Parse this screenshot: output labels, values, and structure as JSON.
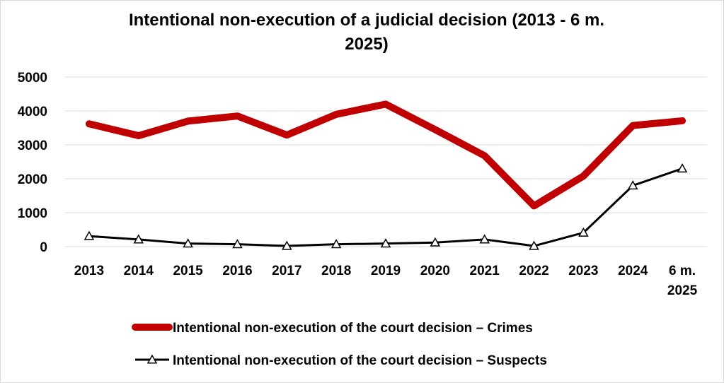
{
  "chart_data": {
    "type": "line",
    "title_lines": [
      "Intentional non-execution of a judicial decision (2013 - 6 m.",
      "2025)"
    ],
    "categories": [
      [
        "2013"
      ],
      [
        "2014"
      ],
      [
        "2015"
      ],
      [
        "2016"
      ],
      [
        "2017"
      ],
      [
        "2018"
      ],
      [
        "2019"
      ],
      [
        "2020"
      ],
      [
        "2021"
      ],
      [
        "2022"
      ],
      [
        "2023"
      ],
      [
        "2024"
      ],
      [
        "6 m.",
        "2025"
      ]
    ],
    "ylim": [
      0,
      5000
    ],
    "yticks": [
      "0",
      "1000",
      "2000",
      "3000",
      "4000",
      "5000"
    ],
    "grid": true,
    "legend_position": "bottom",
    "series": [
      {
        "name": "Intentional non-execution of the court decision – Crimes",
        "color": "#c00000",
        "marker": "none",
        "values": [
          3620,
          3270,
          3700,
          3850,
          3290,
          3900,
          4200,
          3450,
          2680,
          1200,
          2080,
          3570,
          3710
        ]
      },
      {
        "name": "Intentional non-execution of the court decision – Suspects",
        "color": "#000000",
        "marker": "triangle",
        "values": [
          310,
          210,
          90,
          70,
          20,
          70,
          90,
          120,
          210,
          20,
          410,
          1800,
          2300
        ]
      }
    ]
  }
}
